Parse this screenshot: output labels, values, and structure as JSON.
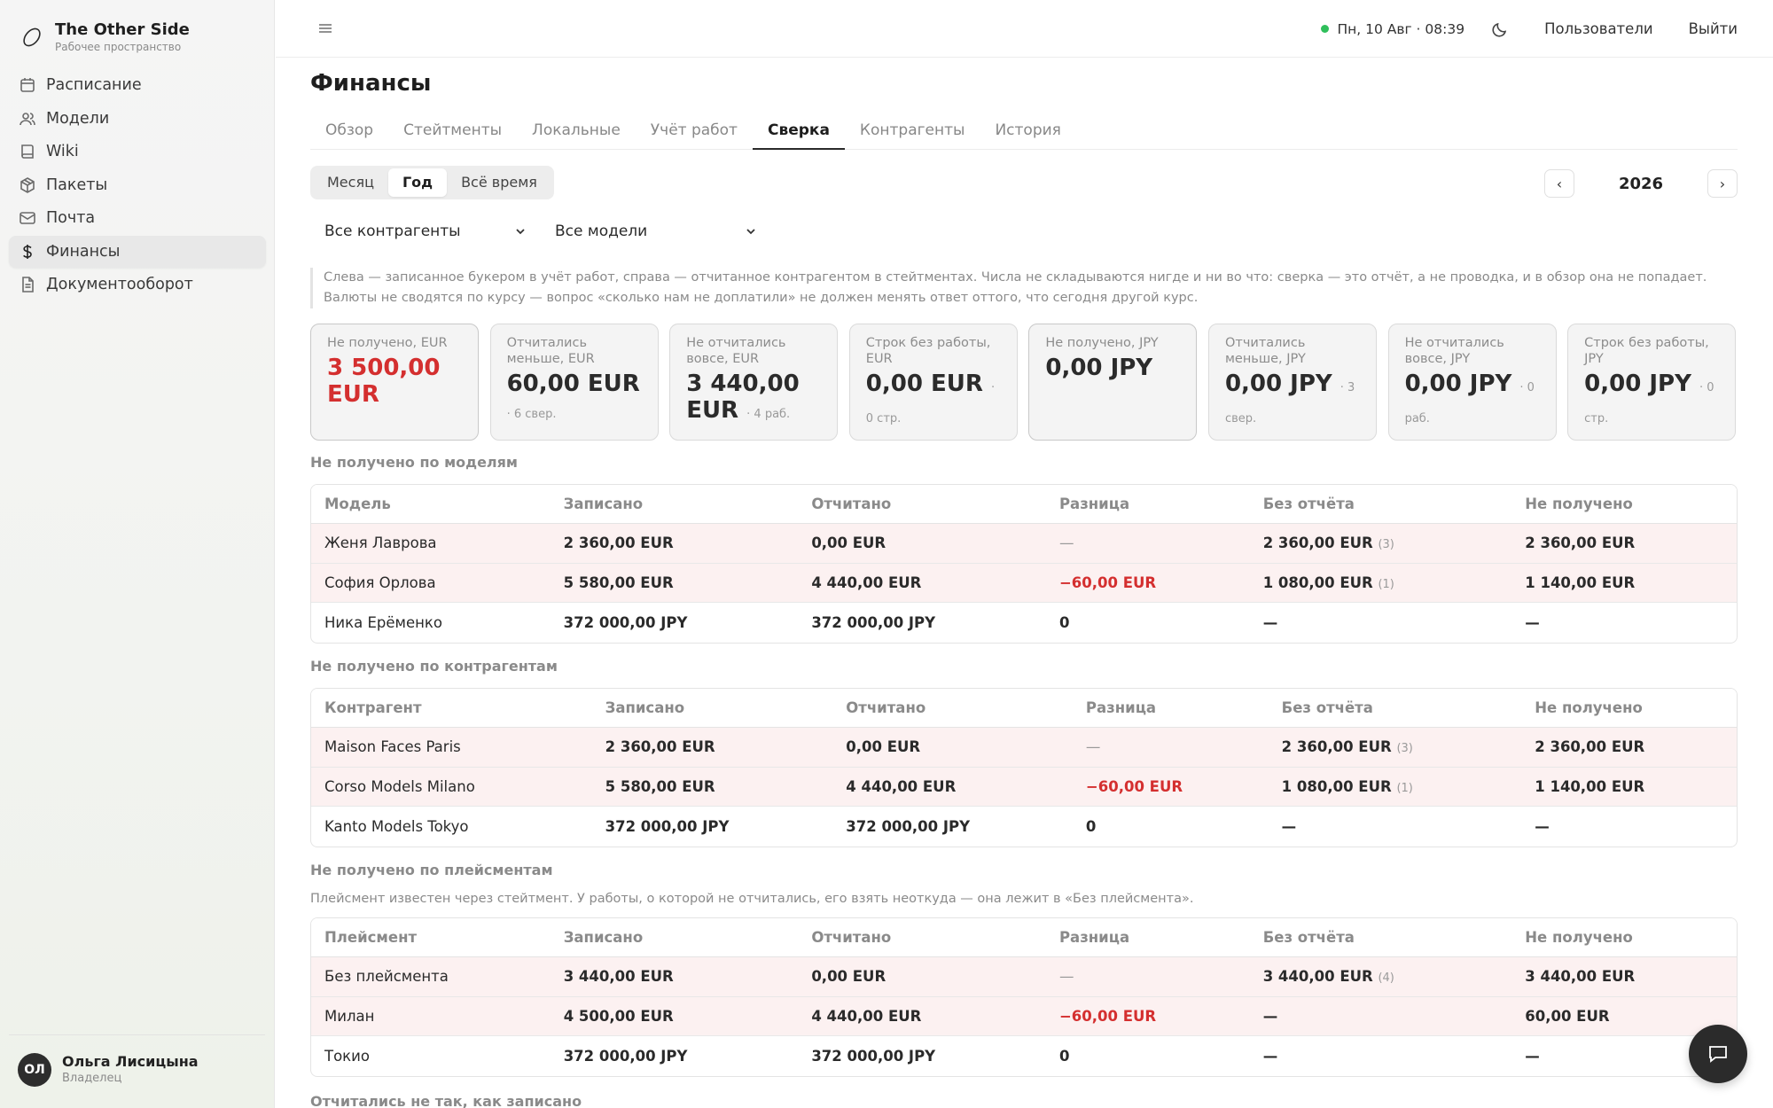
{
  "brand": {
    "title": "The Other Side",
    "subtitle": "Рабочее пространство"
  },
  "nav": [
    {
      "label": "Расписание",
      "icon": "calendar-icon"
    },
    {
      "label": "Модели",
      "icon": "users-icon"
    },
    {
      "label": "Wiki",
      "icon": "book-icon"
    },
    {
      "label": "Пакеты",
      "icon": "package-icon"
    },
    {
      "label": "Почта",
      "icon": "mail-icon"
    },
    {
      "label": "Финансы",
      "icon": "dollar-icon",
      "active": true
    },
    {
      "label": "Документооборот",
      "icon": "document-icon"
    }
  ],
  "user": {
    "initials": "ОЛ",
    "name": "Ольга Лисицына",
    "role": "Владелец"
  },
  "topbar": {
    "clock": "Пн, 10 Авг · 08:39",
    "users_link": "Пользователи",
    "logout": "Выйти",
    "status_color": "#2fbf5b"
  },
  "page": {
    "title": "Финансы"
  },
  "tabs": [
    "Обзор",
    "Стейтменты",
    "Локальные",
    "Учёт работ",
    "Сверка",
    "Контрагенты",
    "История"
  ],
  "active_tab": "Сверка",
  "period": {
    "options": [
      "Месяц",
      "Год",
      "Всё время"
    ],
    "selected": "Год",
    "year": "2026",
    "prev": "‹",
    "next": "›"
  },
  "filters": {
    "counterparty": "Все контрагенты",
    "model": "Все модели"
  },
  "note": "Слева — записанное букером в учёт работ, справа — отчитанное контрагентом в стейтментах. Числа не складываются нигде и ни во что: сверка — это отчёт, а не проводка, и в обзор она не попадает. Валюты не сводятся по курсу — вопрос «сколько нам не доплатили» не должен менять ответ оттого, что сегодня другой курс.",
  "cards": [
    {
      "label": "Не получено, EUR",
      "value": "3 500,00 EUR",
      "meta": "",
      "red": true,
      "hl": true
    },
    {
      "label": "Отчитались меньше, EUR",
      "value": "60,00 EUR",
      "meta": "· 6 свер."
    },
    {
      "label": "Не отчитались вовсе, EUR",
      "value": "3 440,00 EUR",
      "meta": "· 4 раб."
    },
    {
      "label": "Строк без работы, EUR",
      "value": "0,00 EUR",
      "meta": "· 0 стр."
    },
    {
      "label": "Не получено, JPY",
      "value": "0,00 JPY",
      "meta": "",
      "hl": true
    },
    {
      "label": "Отчитались меньше, JPY",
      "value": "0,00 JPY",
      "meta": "· 3 свер."
    },
    {
      "label": "Не отчитались вовсе, JPY",
      "value": "0,00 JPY",
      "meta": "· 0 раб."
    },
    {
      "label": "Строк без работы, JPY",
      "value": "0,00 JPY",
      "meta": "· 0 стр."
    }
  ],
  "accent_red": "#d42f2f",
  "sections": {
    "by_model": {
      "title": "Не получено по моделям",
      "headers": [
        "Модель",
        "Записано",
        "Отчитано",
        "Разница",
        "Без отчёта",
        "Не получено"
      ],
      "rows": [
        {
          "name": "Женя Лаврова",
          "recorded": "2 360,00 EUR",
          "reported": "0,00 EUR",
          "diff": "—",
          "no_report": "2 360,00 EUR",
          "no_report_count": "(3)",
          "not_received": "2 360,00 EUR",
          "miss": true
        },
        {
          "name": "София Орлова",
          "recorded": "5 580,00 EUR",
          "reported": "4 440,00 EUR",
          "diff": "−60,00 EUR",
          "no_report": "1 080,00 EUR",
          "no_report_count": "(1)",
          "not_received": "1 140,00 EUR",
          "miss": true
        },
        {
          "name": "Ника Ерёменко",
          "recorded": "372 000,00 JPY",
          "reported": "372 000,00 JPY",
          "diff": "0",
          "no_report": "—",
          "no_report_count": "",
          "not_received": "—",
          "miss": false
        }
      ]
    },
    "by_counterparty": {
      "title": "Не получено по контрагентам",
      "headers": [
        "Контрагент",
        "Записано",
        "Отчитано",
        "Разница",
        "Без отчёта",
        "Не получено"
      ],
      "rows": [
        {
          "name": "Maison Faces Paris",
          "recorded": "2 360,00 EUR",
          "reported": "0,00 EUR",
          "diff": "—",
          "no_report": "2 360,00 EUR",
          "no_report_count": "(3)",
          "not_received": "2 360,00 EUR",
          "miss": true
        },
        {
          "name": "Corso Models Milano",
          "recorded": "5 580,00 EUR",
          "reported": "4 440,00 EUR",
          "diff": "−60,00 EUR",
          "no_report": "1 080,00 EUR",
          "no_report_count": "(1)",
          "not_received": "1 140,00 EUR",
          "miss": true
        },
        {
          "name": "Kanto Models Tokyo",
          "recorded": "372 000,00 JPY",
          "reported": "372 000,00 JPY",
          "diff": "0",
          "no_report": "—",
          "no_report_count": "",
          "not_received": "—",
          "miss": false
        }
      ]
    },
    "by_placement": {
      "title": "Не получено по плейсментам",
      "desc": "Плейсмент известен через стейтмент. У работы, о которой не отчитались, его взять неоткуда — она лежит в «Без плейсмента».",
      "headers": [
        "Плейсмент",
        "Записано",
        "Отчитано",
        "Разница",
        "Без отчёта",
        "Не получено"
      ],
      "rows": [
        {
          "name": "Без плейсмента",
          "recorded": "3 440,00 EUR",
          "reported": "0,00 EUR",
          "diff": "—",
          "no_report": "3 440,00 EUR",
          "no_report_count": "(4)",
          "not_received": "3 440,00 EUR",
          "miss": true
        },
        {
          "name": "Милан",
          "recorded": "4 500,00 EUR",
          "reported": "4 440,00 EUR",
          "diff": "−60,00 EUR",
          "no_report": "—",
          "no_report_count": "",
          "not_received": "60,00 EUR",
          "miss": true
        },
        {
          "name": "Токио",
          "recorded": "372 000,00 JPY",
          "reported": "372 000,00 JPY",
          "diff": "0",
          "no_report": "—",
          "no_report_count": "",
          "not_received": "—",
          "miss": false
        }
      ]
    },
    "mismatch": {
      "title": "Отчитались не так, как записано"
    }
  }
}
